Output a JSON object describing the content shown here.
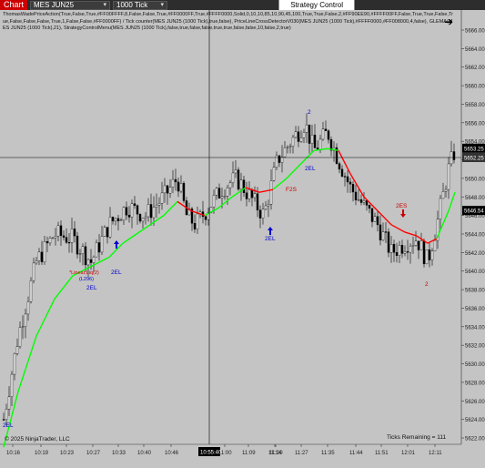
{
  "toolbar": {
    "chart_tab": "Chart",
    "instrument": "MES JUN25",
    "interval": "1000 Tick",
    "strategy_control": "Strategy Control"
  },
  "indicator_label": "ThomasWadePriceAction(True,False,True,#FF00FFFF,8,False,False,True,#FF0000FF,True,#FFFF0000,Solid,0,10,10,85,10,90,45,100,True,True,False,2,#FF90EE90,#FFFF00FF,False,True,True,False,True,False,False,False,True,1,False,False,#FF0000FF) / Tick counter(MES JUN25 (1000 Tick),true,false), PriceLineCrossDetectorV030(MES JUN25 (1000 Tick),#FFFF0000,#FF008000,4,false), GLEMA(MES JUN25 (1000 Tick),21), StrategyControlMenu(MES JUN25 (1000 Tick),false,true,false,false,true,true,false,false,10,false,2,true)",
  "copyright": "© 2025 NinjaTrader, LLC",
  "ticks_remaining": "Ticks Remaining = 111",
  "price_axis": {
    "ticks": [
      "5666.00",
      "5664.00",
      "5662.00",
      "5660.00",
      "5658.00",
      "5656.00",
      "5654.00",
      "5652.00",
      "5650.00",
      "5648.00",
      "5646.00",
      "5644.00",
      "5642.00",
      "5640.00",
      "5638.00",
      "5636.00",
      "5634.00",
      "5632.00",
      "5630.00",
      "5628.00",
      "5626.00",
      "5624.00",
      "5622.00"
    ],
    "current_price": "5653.25",
    "crosshair_price": "5652.25",
    "ema_price": "5646.54"
  },
  "time_axis": {
    "ticks": [
      "10:16",
      "10:19",
      "10:23",
      "10:27",
      "10:33",
      "10:40",
      "10:46",
      "10:55:40",
      "11:00",
      "11:09",
      "11:14",
      "11:20",
      "11:27",
      "11:35",
      "11:44",
      "11:51",
      "12:01",
      "12:11"
    ],
    "crosshair_time": "10:55:40"
  },
  "annotations": {
    "two_el_labels": [
      "2EL",
      "2EL",
      "2EL",
      "2EL",
      "2EL"
    ],
    "two_es_label": "2ES",
    "f2s_label": "F2S",
    "linear_label": "*Linear,Liq(2)",
    "l296_label": "(L296)",
    "two_bottom": "2",
    "two_top": "2"
  },
  "colors": {
    "background": "#c4c4c4",
    "up_candle": "#ffffff",
    "down_candle": "#000000",
    "ema_up": "#00ff00",
    "ema_down": "#ff0000",
    "signal_long": "#0000cc",
    "signal_short": "#cc0000",
    "crosshair": "#000000",
    "current_price_bg": "#000000",
    "ema_price_bg": "#000000"
  }
}
